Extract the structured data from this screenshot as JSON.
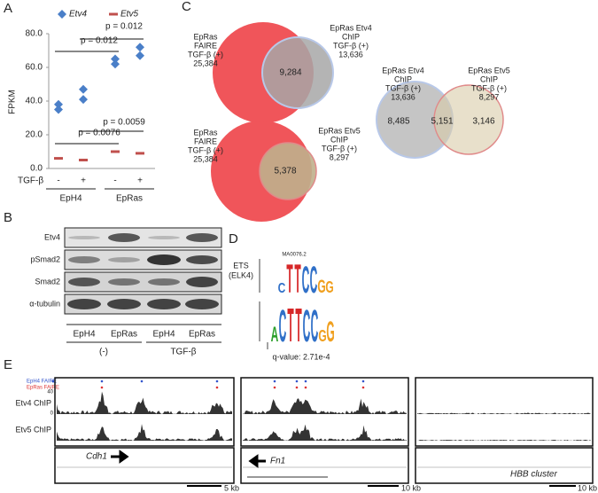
{
  "panel_labels": [
    "A",
    "B",
    "C",
    "D",
    "E"
  ],
  "chart_data": {
    "type": "scatter",
    "y_label": "FPKM",
    "categories": [
      "-",
      "+",
      "-",
      "+"
    ],
    "groups": [
      "EpH4",
      "EpRas"
    ],
    "row_label": "TGF-β",
    "series": [
      {
        "name": "Etv4",
        "color": "#4a7fc8",
        "marker": "diamond",
        "values": [
          [
            38,
            35
          ],
          [
            41,
            47
          ],
          [
            62,
            65
          ],
          [
            67,
            72
          ]
        ]
      },
      {
        "name": "Etv5",
        "color": "#c0504d",
        "marker": "dash",
        "values": [
          6,
          5,
          10,
          9
        ]
      }
    ],
    "ylim": [
      0,
      80
    ],
    "yticks": [
      {
        "value": 0,
        "label": "0.0"
      },
      {
        "value": 20,
        "label": "20.0"
      },
      {
        "value": 40,
        "label": "40.0"
      },
      {
        "value": 60,
        "label": "60.0"
      },
      {
        "value": 80,
        "label": "80.0"
      }
    ],
    "annotations": [
      "p = 0.012",
      "p = 0.012",
      "p = 0.0059",
      "p = 0.0076"
    ]
  },
  "blot": {
    "rows": [
      "Etv4",
      "pSmad2",
      "Smad2",
      "α-tubulin"
    ],
    "lanes": [
      "EpH4",
      "EpRas",
      "EpH4",
      "EpRas"
    ],
    "conditions": [
      "(-)",
      "TGF-β"
    ]
  },
  "venn": {
    "top": {
      "left": [
        "EpRas",
        "FAIRE",
        "TGF-β (+)",
        "25,384"
      ],
      "right": [
        "EpRas Etv4",
        "ChIP",
        "TGF-β (+)",
        "13,636"
      ],
      "overlap": "9,284"
    },
    "bottom": {
      "left": [
        "EpRas",
        "FAIRE",
        "TGF-β (+)",
        "25,384"
      ],
      "right": [
        "EpRas Etv5",
        "ChIP",
        "TGF-β (+)",
        "8,297"
      ],
      "overlap": "5,378"
    },
    "side": {
      "left": [
        "EpRas Etv4",
        "ChIP",
        "TGF-β (+)",
        "13,636"
      ],
      "right": [
        "EpRas Etv5",
        "ChIP",
        "TGF-β (+)",
        "8,297"
      ],
      "left_only": "8,485",
      "overlap": "5,151",
      "right_only": "3,146"
    }
  },
  "motif": {
    "name": [
      "ETS",
      "(ELK4)"
    ],
    "id": "MA0076.2",
    "logo_top": [
      "C",
      "T",
      "T",
      "C",
      "C",
      "G",
      "G"
    ],
    "logo_bottom": [
      "A",
      "C",
      "T",
      "T",
      "C",
      "C",
      "G",
      "G"
    ],
    "q_value": "q-value: 2.71e-4"
  },
  "tracks": {
    "legend": [
      "EpH4 FAIRE",
      "EpRas FAIRE"
    ],
    "rows": [
      "Etv4 ChIP",
      "Etv5 ChIP"
    ],
    "axis": [
      "40",
      "0"
    ],
    "genes": [
      "Cdh1",
      "Fn1",
      "HBB cluster"
    ],
    "scales": [
      "5 kb",
      "10 kb",
      "10 kb"
    ]
  }
}
